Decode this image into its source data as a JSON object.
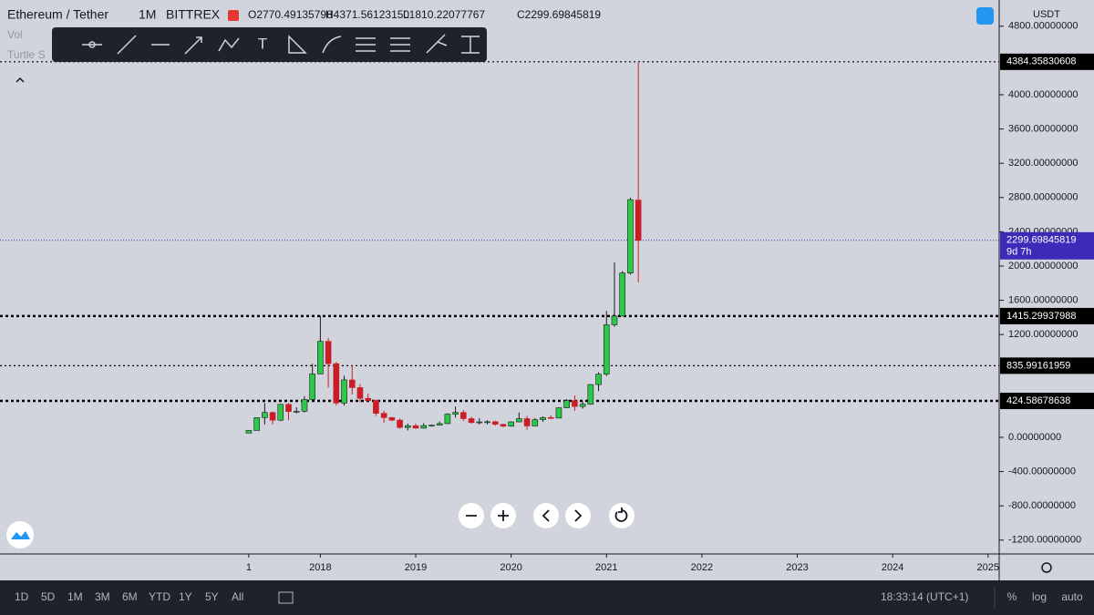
{
  "header": {
    "symbol": "Ethereum / Tether",
    "interval": "1M",
    "exchange": "BITTREX",
    "open": "O2770.49135798",
    "high": "H4371.56123150",
    "low": "L1810.22077767",
    "close": "C2299.69845819",
    "indicators": [
      "Vol",
      "Turtle S"
    ]
  },
  "toolbar": {
    "text_tool": "T"
  },
  "chart_data": {
    "type": "candlestick",
    "currency": "USDT",
    "up_color": "#2cc84a",
    "down_color": "#c81e28",
    "open": [
      50,
      80,
      230,
      290,
      200,
      385,
      300,
      305,
      440,
      740,
      1120,
      860,
      400,
      670,
      580,
      455,
      430,
      280,
      230,
      200,
      115,
      135,
      107,
      137,
      141,
      160,
      270,
      290,
      218,
      172,
      180,
      182,
      152,
      130,
      180,
      218,
      133,
      206,
      231,
      225,
      345,
      430,
      360,
      386,
      616,
      737,
      1314,
      1416,
      1918,
      2770.49135798
    ],
    "high": [
      80,
      230,
      400,
      300,
      390,
      400,
      350,
      480,
      860,
      1420,
      1160,
      880,
      720,
      840,
      620,
      510,
      440,
      310,
      240,
      220,
      160,
      160,
      165,
      150,
      185,
      280,
      360,
      320,
      240,
      225,
      200,
      195,
      155,
      185,
      290,
      250,
      225,
      245,
      255,
      350,
      445,
      490,
      420,
      620,
      760,
      1475,
      2040,
      1940,
      2797,
      4371.5612315
    ],
    "low": [
      48,
      80,
      150,
      150,
      190,
      200,
      280,
      290,
      420,
      740,
      580,
      370,
      370,
      500,
      410,
      420,
      250,
      170,
      190,
      100,
      80,
      100,
      102,
      125,
      140,
      155,
      230,
      190,
      160,
      150,
      150,
      135,
      115,
      125,
      175,
      90,
      130,
      180,
      215,
      225,
      340,
      310,
      335,
      380,
      540,
      715,
      1290,
      1450,
      1900,
      1810.22077767
    ],
    "close": [
      80,
      230,
      290,
      200,
      385,
      300,
      305,
      440,
      740,
      1120,
      860,
      400,
      670,
      580,
      455,
      430,
      280,
      230,
      200,
      115,
      135,
      107,
      137,
      141,
      160,
      270,
      290,
      218,
      172,
      180,
      182,
      152,
      130,
      180,
      218,
      133,
      206,
      231,
      225,
      345,
      430,
      360,
      386,
      616,
      737,
      1314,
      1416,
      1918,
      2775,
      2299.69845819
    ],
    "xlim": [
      -31.3,
      94.4
    ],
    "xticks": [
      {
        "value": 0,
        "label": "1"
      },
      {
        "value": 9,
        "label": "2018"
      },
      {
        "value": 21,
        "label": "2019"
      },
      {
        "value": 33,
        "label": "2020"
      },
      {
        "value": 45,
        "label": "2021"
      },
      {
        "value": 57,
        "label": "2022"
      },
      {
        "value": 69,
        "label": "2023"
      },
      {
        "value": 81,
        "label": "2024"
      },
      {
        "value": 93,
        "label": "2025"
      }
    ],
    "ylim": [
      -1362,
      5106
    ],
    "yticks": [
      {
        "value": 4800,
        "label": "4800.00000000"
      },
      {
        "value": 4000,
        "label": "4000.00000000"
      },
      {
        "value": 3600,
        "label": "3600.00000000"
      },
      {
        "value": 3200,
        "label": "3200.00000000"
      },
      {
        "value": 2800,
        "label": "2800.00000000"
      },
      {
        "value": 2400,
        "label": "2400.00000000"
      },
      {
        "value": 2000,
        "label": "2000.00000000"
      },
      {
        "value": 1600,
        "label": "1600.00000000"
      },
      {
        "value": 1200,
        "label": "1200.00000000"
      },
      {
        "value": 0,
        "label": "0.00000000"
      },
      {
        "value": -400,
        "label": "-400.00000000"
      },
      {
        "value": -800,
        "label": "-800.00000000"
      },
      {
        "value": -1200,
        "label": "-1200.00000000"
      }
    ],
    "levels": [
      {
        "value": 4384.35830608,
        "label": "4384.35830608",
        "style": "fine"
      },
      {
        "value": 1415.29937988,
        "label": "1415.29937988",
        "style": "bold"
      },
      {
        "value": 835.99161959,
        "label": "835.99161959",
        "style": "fine"
      },
      {
        "value": 424.58678638,
        "label": "424.58678638",
        "style": "bold"
      }
    ],
    "last_price": {
      "value": 2299.69845819,
      "label": "2299.69845819",
      "countdown": "9d 7h",
      "color": "#3d2ab8"
    }
  },
  "footer": {
    "ranges": [
      "1D",
      "5D",
      "1M",
      "3M",
      "6M",
      "YTD",
      "1Y",
      "5Y",
      "All"
    ],
    "time": "18:33:14 (UTC+1)",
    "percent": "%",
    "log": "log",
    "auto": "auto"
  }
}
